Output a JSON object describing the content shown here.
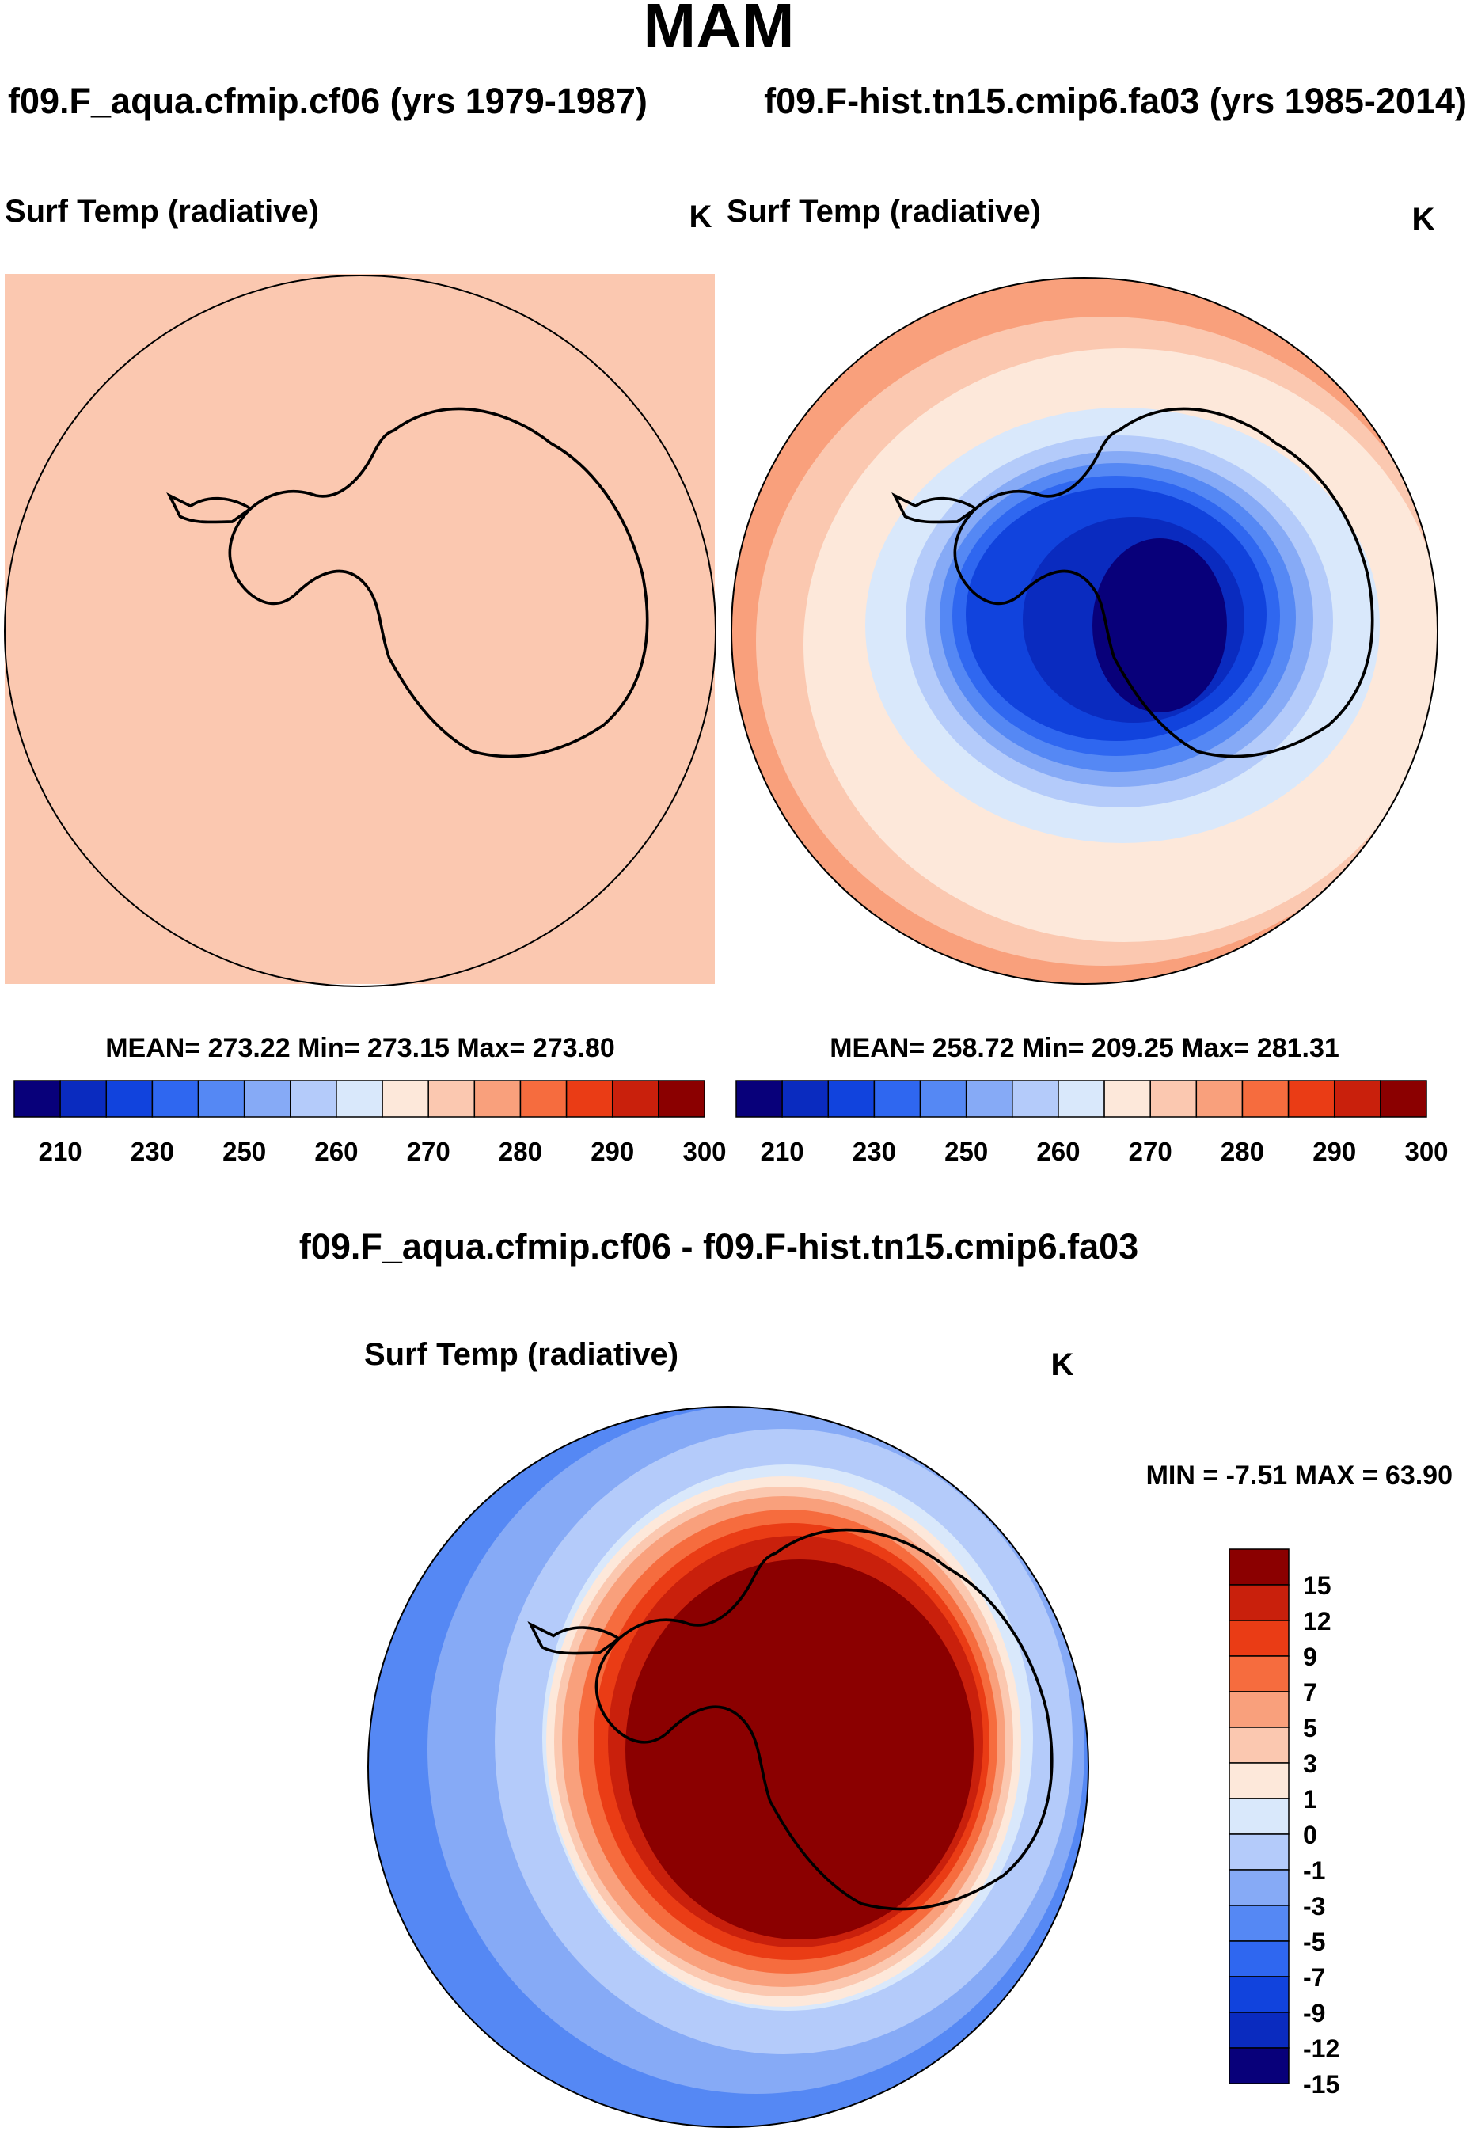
{
  "page": {
    "main_title": "MAM",
    "case1_title": "f09.F_aqua.cfmip.cf06 (yrs 1979-1987)",
    "case2_title": "f09.F-hist.tn15.cmip6.fa03 (yrs 1985-2014)",
    "diff_title": "f09.F_aqua.cfmip.cf06 - f09.F-hist.tn15.cmip6.fa03"
  },
  "colors": {
    "abs_levels": [
      "#08007a",
      "#0a2bbf",
      "#1143dd",
      "#2f67f0",
      "#5588f4",
      "#86aaf6",
      "#b4cbfa",
      "#d9e8fb",
      "#fde8da",
      "#fbc8b0",
      "#f9a07c",
      "#f66c3e",
      "#ea3c15",
      "#c9200c",
      "#8b0000"
    ],
    "diff_levels": [
      "#08007a",
      "#0a2bbf",
      "#1143dd",
      "#2f67f0",
      "#5588f4",
      "#86aaf6",
      "#b4cbfa",
      "#d9e8fb",
      "#fde8da",
      "#fbc8b0",
      "#f9a07c",
      "#f66c3e",
      "#ea3c15",
      "#c9200c",
      "#8b0000"
    ],
    "coast": "#000000"
  },
  "chart_data": [
    {
      "type": "heatmap",
      "panel": "case1",
      "title": "Surf Temp (radiative)",
      "units": "K",
      "projection": "south polar stereographic",
      "stats_label": "MEAN= 273.22  Min= 273.15  Max= 273.80",
      "mean": 273.22,
      "min": 273.15,
      "max": 273.8,
      "field": "uniform",
      "uniform_level_index": 9,
      "colorbar_ticks": [
        "210",
        "230",
        "250",
        "260",
        "270",
        "280",
        "290",
        "300"
      ]
    },
    {
      "type": "heatmap",
      "panel": "case2",
      "title": "Surf Temp (radiative)",
      "units": "K",
      "projection": "south polar stereographic",
      "stats_label": "MEAN= 258.72  Min= 209.25  Max= 281.31",
      "mean": 258.72,
      "min": 209.25,
      "max": 281.31,
      "field": "cold antarctic interior, warm ocean",
      "colorbar_ticks": [
        "210",
        "230",
        "250",
        "260",
        "270",
        "280",
        "290",
        "300"
      ]
    },
    {
      "type": "heatmap",
      "panel": "difference",
      "title": "Surf Temp (radiative)",
      "units": "K",
      "projection": "south polar stereographic",
      "stats_label": "MIN =  -7.51 MAX =  63.90",
      "min": -7.51,
      "max": 63.9,
      "field": "strong warm anomaly over antarctica, weak cool ring offshore",
      "colorbar_ticks": [
        "15",
        "12",
        "9",
        "7",
        "5",
        "3",
        "1",
        "0",
        "-1",
        "-3",
        "-5",
        "-7",
        "-9",
        "-12",
        "-15"
      ]
    }
  ]
}
